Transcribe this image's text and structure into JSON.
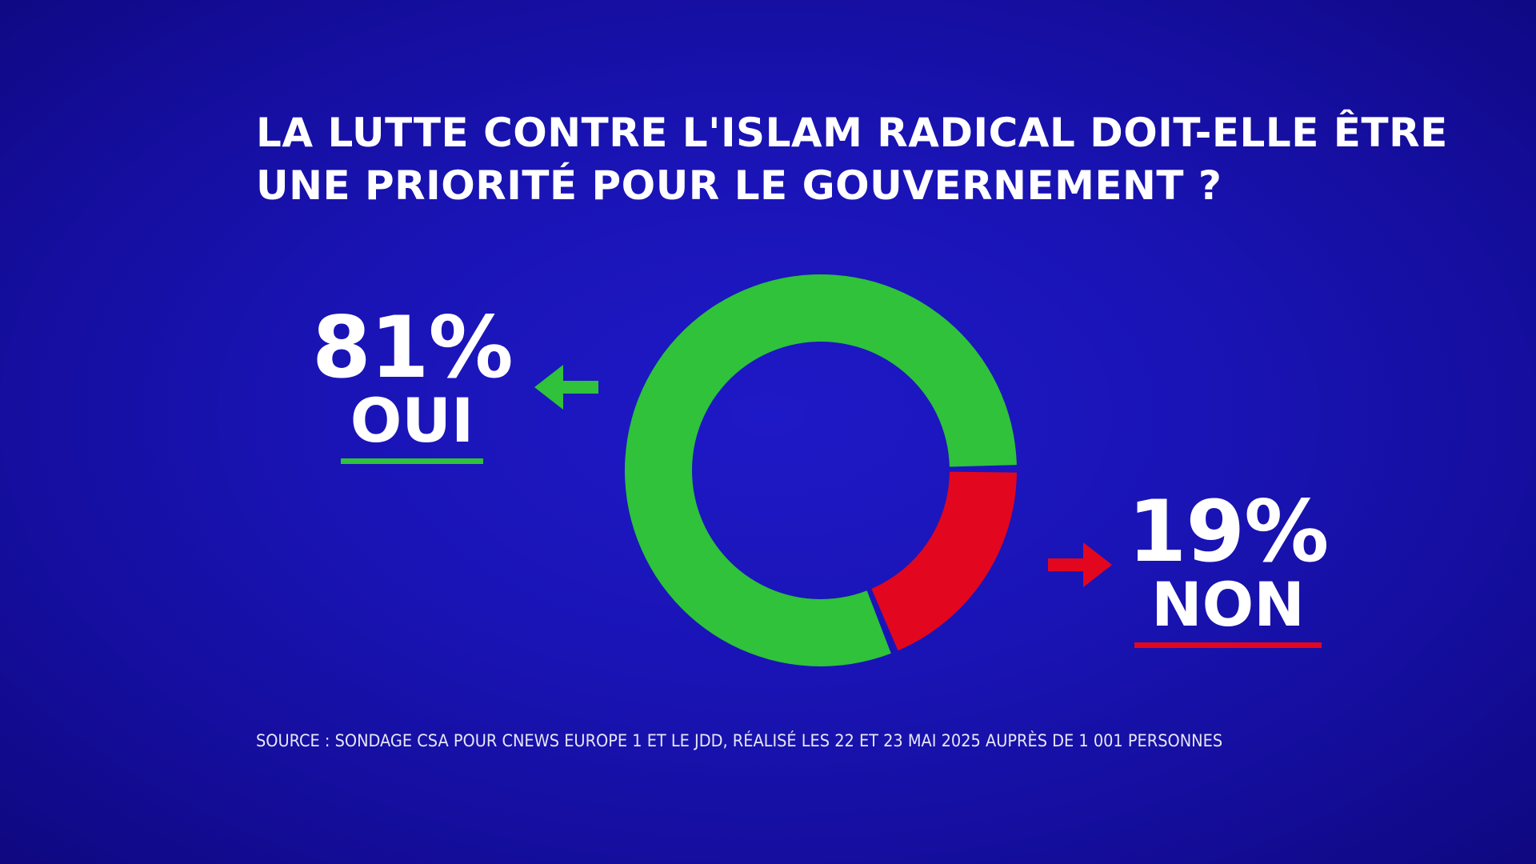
{
  "chart_data": {
    "type": "pie",
    "title": "LA LUTTE CONTRE L'ISLAM RADICAL DOIT-ELLE ÊTRE UNE PRIORITÉ POUR LE GOUVERNEMENT ?",
    "title_lines": [
      "LA LUTTE CONTRE L'ISLAM RADICAL DOIT-ELLE ÊTRE",
      "UNE PRIORITÉ POUR LE GOUVERNEMENT ?"
    ],
    "style": "donut",
    "slices": [
      {
        "label": "OUI",
        "value": 81,
        "value_label": "81%",
        "color": "#2fc23a"
      },
      {
        "label": "NON",
        "value": 19,
        "value_label": "19%",
        "color": "#e3061f"
      }
    ],
    "source": "SOURCE : SONDAGE CSA POUR CNEWS EUROPE 1 ET LE JDD, RÉALISÉ LES 22 ET 23 MAI 2025 AUPRÈS DE 1 001 PERSONNES"
  },
  "icons": {
    "oui_arrow": "arrow-left-icon",
    "non_arrow": "arrow-right-icon"
  }
}
